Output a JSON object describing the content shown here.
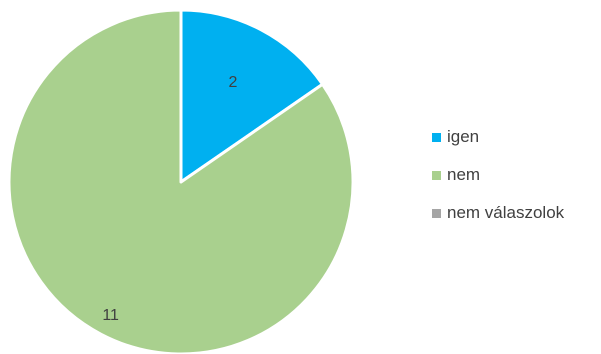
{
  "chart_data": {
    "type": "pie",
    "title": "",
    "slices": [
      {
        "label": "igen",
        "value": 2,
        "color": "#00b0f0",
        "data_label": "2"
      },
      {
        "label": "nem",
        "value": 11,
        "color": "#a9d08e",
        "data_label": "11"
      },
      {
        "label": "nem válaszolok",
        "value": 0,
        "color": "#a5a5a5",
        "data_label": ""
      }
    ],
    "start_angle_deg": 0,
    "direction": "clockwise",
    "legend_position": "right"
  }
}
